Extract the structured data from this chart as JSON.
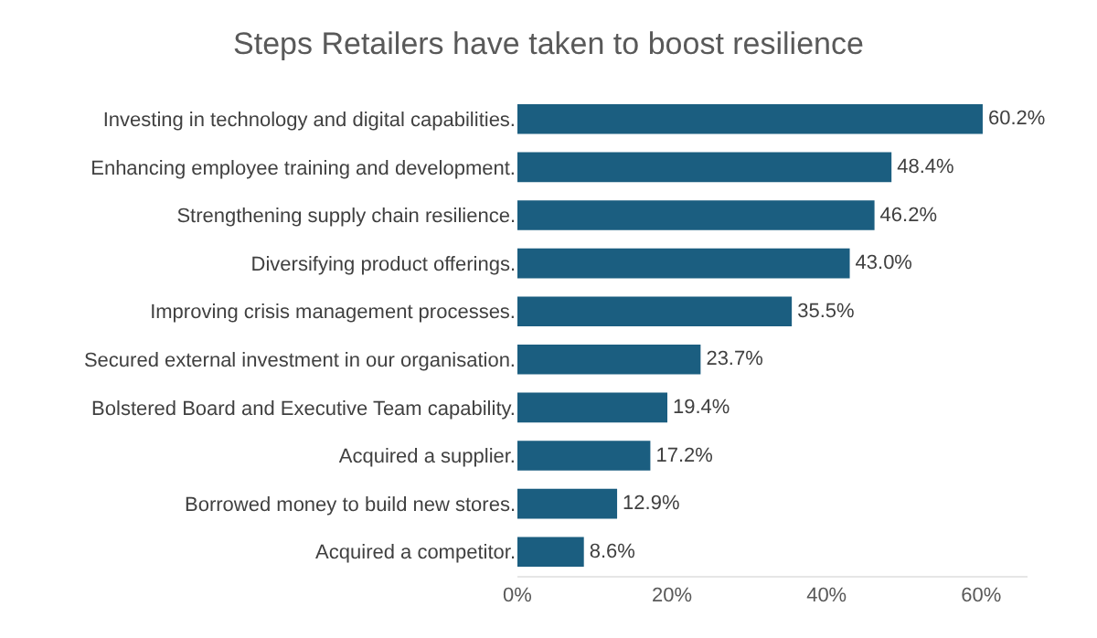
{
  "chart_data": {
    "type": "bar",
    "orientation": "horizontal",
    "title": "Steps Retailers have taken to boost resilience",
    "categories": [
      "Investing in technology and digital capabilities.",
      "Enhancing employee training and development.",
      "Strengthening supply chain resilience.",
      "Diversifying product offerings.",
      "Improving crisis management processes.",
      "Secured external investment in our organisation.",
      "Bolstered Board and Executive Team capability.",
      "Acquired a supplier.",
      "Borrowed money to build new stores.",
      "Acquired a competitor."
    ],
    "values": [
      60.2,
      48.4,
      46.2,
      43.0,
      35.5,
      23.7,
      19.4,
      17.2,
      12.9,
      8.6
    ],
    "value_labels": [
      "60.2%",
      "48.4%",
      "46.2%",
      "43.0%",
      "35.5%",
      "23.7%",
      "19.4%",
      "17.2%",
      "12.9%",
      "8.6%"
    ],
    "color": "#1b5e80",
    "xlim": [
      0,
      66
    ],
    "xticks": [
      {
        "value": 0,
        "label": "0%"
      },
      {
        "value": 20,
        "label": "20%"
      },
      {
        "value": 40,
        "label": "40%"
      },
      {
        "value": 60,
        "label": "60%"
      }
    ],
    "grid": false,
    "legend": false
  }
}
